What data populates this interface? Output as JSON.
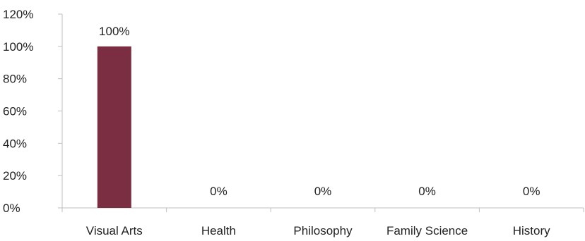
{
  "chart_data": {
    "type": "bar",
    "title": "",
    "xlabel": "",
    "ylabel": "",
    "categories": [
      "Visual Arts",
      "Health",
      "Philosophy",
      "Family Science",
      "History"
    ],
    "values": [
      100,
      0,
      0,
      0,
      0
    ],
    "value_labels": [
      "100%",
      "0%",
      "0%",
      "0%",
      "0%"
    ],
    "ylim": [
      0,
      120
    ],
    "yticks": [
      0,
      20,
      40,
      60,
      80,
      100,
      120
    ],
    "ytick_labels": [
      "0%",
      "20%",
      "40%",
      "60%",
      "80%",
      "100%",
      "120%"
    ],
    "grid": false,
    "legend": "none",
    "bar_color": "#7B2D42",
    "axis_color": "#BFBFBF"
  }
}
